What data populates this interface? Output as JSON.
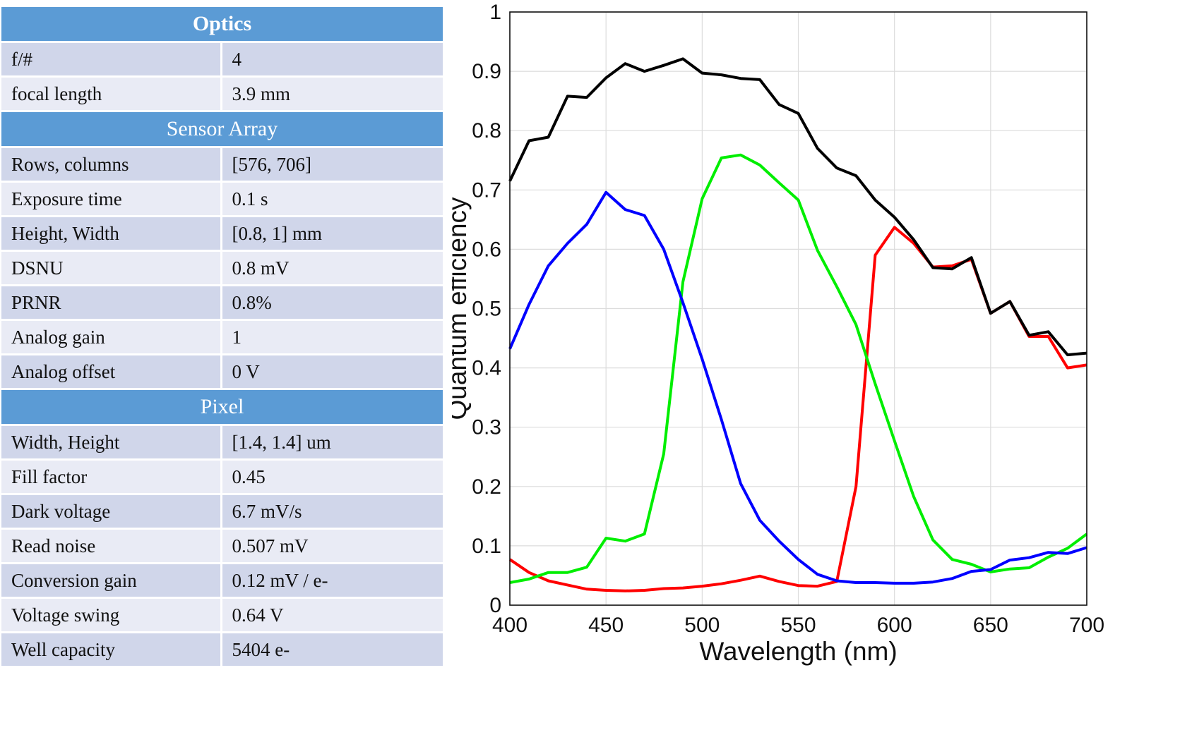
{
  "table": {
    "sections": [
      {
        "title": "Optics",
        "bold": true,
        "rows": [
          {
            "label": "f/#",
            "value": "4"
          },
          {
            "label": "focal length",
            "value": "3.9 mm"
          }
        ]
      },
      {
        "title": "Sensor Array",
        "bold": false,
        "rows": [
          {
            "label": "Rows, columns",
            "value": "[576, 706]"
          },
          {
            "label": "Exposure time",
            "value": "0.1 s"
          },
          {
            "label": "Height, Width",
            "value": "[0.8, 1] mm"
          },
          {
            "label": "DSNU",
            "value": "0.8 mV"
          },
          {
            "label": "PRNR",
            "value": "0.8%"
          },
          {
            "label": "Analog gain",
            "value": "1"
          },
          {
            "label": "Analog offset",
            "value": "0 V"
          }
        ]
      },
      {
        "title": "Pixel",
        "bold": false,
        "rows": [
          {
            "label": "Width, Height",
            "value": "[1.4, 1.4] um"
          },
          {
            "label": "Fill factor",
            "value": "0.45"
          },
          {
            "label": "Dark voltage",
            "value": "6.7 mV/s"
          },
          {
            "label": "Read noise",
            "value": "0.507 mV"
          },
          {
            "label": "Conversion gain",
            "value": "0.12 mV / e-"
          },
          {
            "label": "Voltage swing",
            "value": "0.64 V"
          },
          {
            "label": "Well capacity",
            "value": "5404 e-"
          }
        ]
      }
    ]
  },
  "colors": {
    "section_header": "#5b9bd5",
    "row_dark": "#d0d6ea",
    "row_light": "#e9ebf5"
  },
  "chart_data": {
    "type": "line",
    "xlabel": "Wavelength (nm)",
    "ylabel": "Quantum efficiency",
    "xlim": [
      400,
      700
    ],
    "ylim": [
      0,
      1
    ],
    "xticks": [
      400,
      450,
      500,
      550,
      600,
      650,
      700
    ],
    "yticks": [
      0,
      0.1,
      0.2,
      0.3,
      0.4,
      0.5,
      0.6,
      0.7,
      0.8,
      0.9,
      1
    ],
    "ytick_labels": [
      "0",
      "0.1",
      "0.2",
      "0.3",
      "0.4",
      "0.5",
      "0.6",
      "0.7",
      "0.8",
      "0.9",
      "1"
    ],
    "grid": true,
    "x": [
      400,
      410,
      420,
      430,
      440,
      450,
      460,
      470,
      480,
      490,
      500,
      510,
      520,
      530,
      540,
      550,
      560,
      570,
      580,
      590,
      600,
      610,
      620,
      630,
      640,
      650,
      660,
      670,
      680,
      690,
      700
    ],
    "series": [
      {
        "color": "#ff0000",
        "values": [
          0.077,
          0.055,
          0.041,
          0.034,
          0.027,
          0.025,
          0.024,
          0.025,
          0.028,
          0.029,
          0.032,
          0.036,
          0.042,
          0.049,
          0.04,
          0.033,
          0.032,
          0.04,
          0.2,
          0.59,
          0.637,
          0.61,
          0.57,
          0.572,
          0.583,
          0.492,
          0.512,
          0.453,
          0.453,
          0.4,
          0.405
        ]
      },
      {
        "color": "#00ee00",
        "values": [
          0.038,
          0.044,
          0.055,
          0.055,
          0.064,
          0.113,
          0.108,
          0.12,
          0.255,
          0.545,
          0.685,
          0.754,
          0.759,
          0.742,
          0.712,
          0.683,
          0.598,
          0.537,
          0.473,
          0.373,
          0.277,
          0.183,
          0.11,
          0.077,
          0.069,
          0.056,
          0.061,
          0.063,
          0.081,
          0.096,
          0.12
        ]
      },
      {
        "color": "#0000ff",
        "values": [
          0.432,
          0.507,
          0.572,
          0.61,
          0.642,
          0.696,
          0.667,
          0.657,
          0.6,
          0.51,
          0.415,
          0.313,
          0.205,
          0.143,
          0.108,
          0.077,
          0.052,
          0.041,
          0.038,
          0.038,
          0.037,
          0.037,
          0.039,
          0.045,
          0.057,
          0.06,
          0.076,
          0.08,
          0.089,
          0.087,
          0.097
        ]
      },
      {
        "color": "#000000",
        "values": [
          0.715,
          0.783,
          0.789,
          0.858,
          0.856,
          0.889,
          0.913,
          0.9,
          0.91,
          0.921,
          0.897,
          0.894,
          0.888,
          0.886,
          0.844,
          0.829,
          0.77,
          0.737,
          0.724,
          0.683,
          0.654,
          0.616,
          0.569,
          0.567,
          0.586,
          0.492,
          0.512,
          0.455,
          0.461,
          0.422,
          0.425
        ]
      }
    ]
  }
}
